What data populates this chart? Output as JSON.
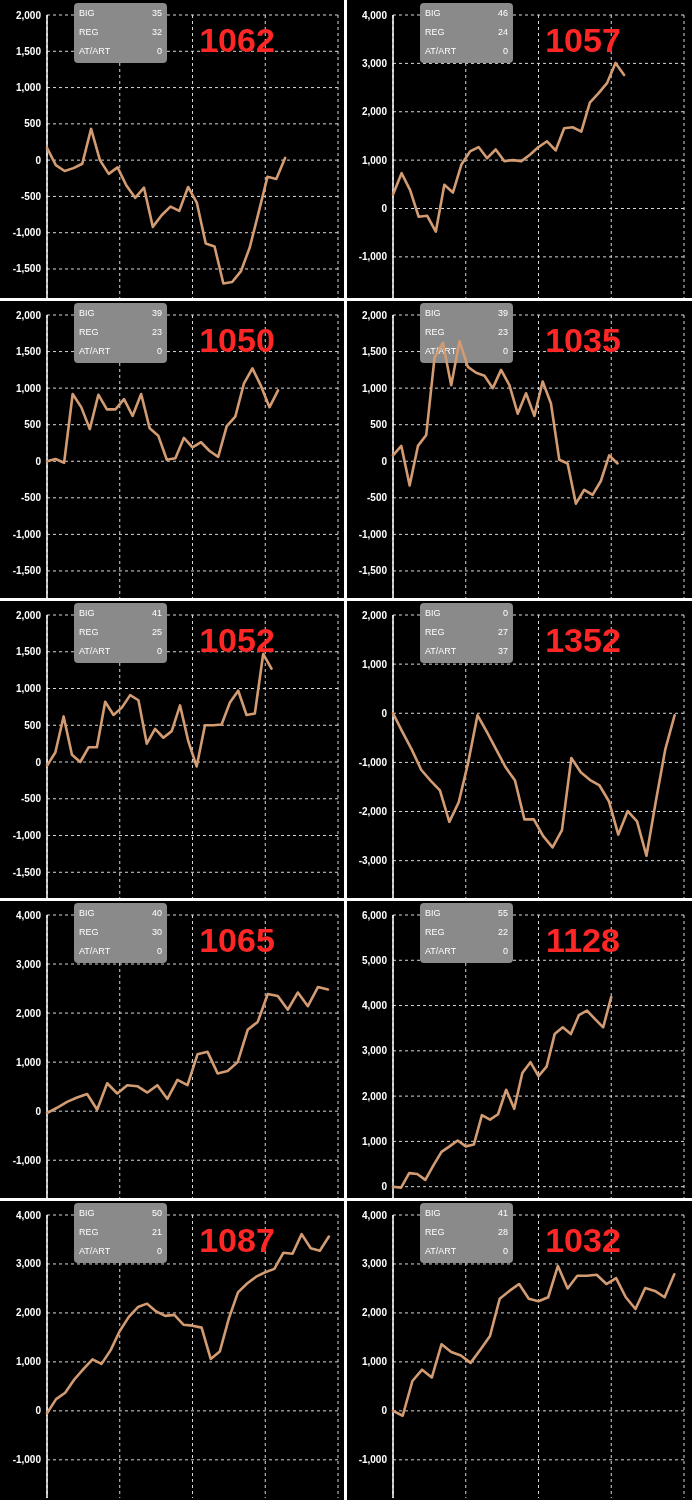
{
  "chart_data": [
    {
      "type": "line",
      "title": "1062",
      "annotations": [
        "BIG",
        "35",
        "REG",
        "32",
        "AT/ART",
        "0"
      ],
      "categories": [
        null,
        null,
        null,
        null,
        null,
        null,
        null,
        null,
        null,
        null,
        null,
        null,
        null,
        null,
        null,
        null,
        null,
        null,
        null,
        null,
        null,
        null,
        null,
        null,
        null,
        null,
        null,
        null,
        null,
        null,
        null,
        null,
        null,
        null
      ],
      "series": [
        {
          "color": "#d29b72",
          "values": [
            170,
            -70,
            -150,
            -110,
            -50,
            430,
            0,
            -190,
            -100,
            -350,
            -520,
            -380,
            -920,
            -760,
            -640,
            -700,
            -370,
            -590,
            -1150,
            -1190,
            -1700,
            -1680,
            -1530,
            -1200,
            -720,
            -230,
            -260,
            30,
            null,
            null,
            null,
            null,
            null,
            null
          ]
        }
      ],
      "ylim": [
        -1900,
        2000
      ],
      "yticks": [
        {
          "value": -1500,
          "label": "-1,500"
        },
        {
          "value": -1000,
          "label": "-1,000"
        },
        {
          "value": -500,
          "label": "-500"
        },
        {
          "value": 0,
          "label": "0"
        },
        {
          "value": 500,
          "label": "500"
        },
        {
          "value": 1000,
          "label": "1,000"
        },
        {
          "value": 1500,
          "label": "1,500"
        },
        {
          "value": 2000,
          "label": "2,000"
        }
      ],
      "grid": true,
      "tick_labels": "y"
    },
    {
      "type": "line",
      "title": "1057",
      "annotations": [
        "BIG",
        "46",
        "REG",
        "24",
        "AT/ART",
        "0"
      ],
      "categories": [
        null,
        null,
        null,
        null,
        null,
        null,
        null,
        null,
        null,
        null,
        null,
        null,
        null,
        null,
        null,
        null,
        null,
        null,
        null,
        null,
        null,
        null,
        null,
        null,
        null,
        null,
        null,
        null,
        null,
        null,
        null,
        null,
        null,
        null,
        null
      ],
      "series": [
        {
          "color": "#d29b72",
          "values": [
            290,
            730,
            380,
            -170,
            -150,
            -480,
            490,
            330,
            910,
            1180,
            1270,
            1040,
            1220,
            980,
            1000,
            980,
            1110,
            1270,
            1390,
            1200,
            1660,
            1680,
            1590,
            2190,
            2380,
            2590,
            3010,
            2760,
            null,
            null,
            null,
            null,
            null,
            null,
            null
          ]
        }
      ],
      "ylim": [
        -1850,
        4000
      ],
      "yticks": [
        {
          "value": -1000,
          "label": "-1,000"
        },
        {
          "value": 0,
          "label": "0"
        },
        {
          "value": 1000,
          "label": "1,000"
        },
        {
          "value": 2000,
          "label": "2,000"
        },
        {
          "value": 3000,
          "label": "3,000"
        },
        {
          "value": 4000,
          "label": "4,000"
        }
      ],
      "grid": true,
      "tick_labels": "y"
    },
    {
      "type": "line",
      "title": "1050",
      "annotations": [
        "BIG",
        "39",
        "REG",
        "23",
        "AT/ART",
        "0"
      ],
      "categories": [
        null,
        null,
        null,
        null,
        null,
        null,
        null,
        null,
        null,
        null,
        null,
        null,
        null,
        null,
        null,
        null,
        null,
        null,
        null,
        null,
        null,
        null,
        null,
        null,
        null,
        null,
        null,
        null,
        null,
        null,
        null,
        null,
        null,
        null,
        null
      ],
      "series": [
        {
          "color": "#d29b72",
          "values": [
            0,
            30,
            -20,
            920,
            740,
            440,
            910,
            710,
            710,
            850,
            620,
            920,
            450,
            350,
            20,
            40,
            320,
            190,
            260,
            140,
            60,
            480,
            610,
            1060,
            1270,
            1030,
            740,
            970,
            null,
            null,
            null,
            null,
            null,
            null,
            null
          ]
        }
      ],
      "ylim": [
        -1870,
        2000
      ],
      "yticks": [
        {
          "value": -1500,
          "label": "-1,500"
        },
        {
          "value": -1000,
          "label": "-1,000"
        },
        {
          "value": -500,
          "label": "-500"
        },
        {
          "value": 0,
          "label": "0"
        },
        {
          "value": 500,
          "label": "500"
        },
        {
          "value": 1000,
          "label": "1,000"
        },
        {
          "value": 1500,
          "label": "1,500"
        },
        {
          "value": 2000,
          "label": "2,000"
        }
      ],
      "grid": true,
      "tick_labels": "y"
    },
    {
      "type": "line",
      "title": "1035",
      "annotations": [
        "BIG",
        "39",
        "REG",
        "23",
        "AT/ART",
        "0"
      ],
      "categories": [
        null,
        null,
        null,
        null,
        null,
        null,
        null,
        null,
        null,
        null,
        null,
        null,
        null,
        null,
        null,
        null,
        null,
        null,
        null,
        null,
        null,
        null,
        null,
        null,
        null,
        null,
        null,
        null,
        null,
        null,
        null,
        null,
        null,
        null,
        null,
        null
      ],
      "series": [
        {
          "color": "#d29b72",
          "values": [
            80,
            210,
            -330,
            210,
            360,
            1420,
            1620,
            1040,
            1640,
            1290,
            1210,
            1170,
            1000,
            1250,
            1040,
            650,
            930,
            620,
            1090,
            790,
            20,
            -30,
            -580,
            -390,
            -460,
            -270,
            80,
            -30,
            null,
            null,
            null,
            null,
            null,
            null,
            null,
            null
          ]
        }
      ],
      "ylim": [
        -1870,
        2000
      ],
      "yticks": [
        {
          "value": -1500,
          "label": "-1,500"
        },
        {
          "value": -1000,
          "label": "-1,000"
        },
        {
          "value": -500,
          "label": "-500"
        },
        {
          "value": 0,
          "label": "0"
        },
        {
          "value": 500,
          "label": "500"
        },
        {
          "value": 1000,
          "label": "1,000"
        },
        {
          "value": 1500,
          "label": "1,500"
        },
        {
          "value": 2000,
          "label": "2,000"
        }
      ],
      "grid": true,
      "tick_labels": "y"
    },
    {
      "type": "line",
      "title": "1052",
      "annotations": [
        "BIG",
        "41",
        "REG",
        "25",
        "AT/ART",
        "0"
      ],
      "categories": [
        null,
        null,
        null,
        null,
        null,
        null,
        null,
        null,
        null,
        null,
        null,
        null,
        null,
        null,
        null,
        null,
        null,
        null,
        null,
        null,
        null,
        null,
        null,
        null,
        null,
        null,
        null,
        null,
        null,
        null,
        null,
        null,
        null,
        null,
        null,
        null
      ],
      "series": [
        {
          "color": "#d29b72",
          "values": [
            -50,
            130,
            620,
            100,
            0,
            200,
            200,
            820,
            640,
            740,
            910,
            840,
            250,
            450,
            330,
            420,
            770,
            280,
            -60,
            500,
            500,
            510,
            810,
            970,
            640,
            660,
            1470,
            1270,
            null,
            null,
            null,
            null,
            null,
            null,
            null,
            null
          ]
        }
      ],
      "ylim": [
        -1850,
        2000
      ],
      "yticks": [
        {
          "value": -1500,
          "label": "-1,500"
        },
        {
          "value": -1000,
          "label": "-1,000"
        },
        {
          "value": -500,
          "label": "-500"
        },
        {
          "value": 0,
          "label": "0"
        },
        {
          "value": 500,
          "label": "500"
        },
        {
          "value": 1000,
          "label": "1,000"
        },
        {
          "value": 1500,
          "label": "1,500"
        },
        {
          "value": 2000,
          "label": "2,000"
        }
      ],
      "grid": true,
      "tick_labels": "y"
    },
    {
      "type": "line",
      "title": "1352",
      "annotations": [
        "BIG",
        "0",
        "REG",
        "27",
        "AT/ART",
        "37"
      ],
      "categories": [
        null,
        null,
        null,
        null,
        null,
        null,
        null,
        null,
        null,
        null,
        null,
        null,
        null,
        null,
        null,
        null,
        null,
        null,
        null,
        null,
        null,
        null,
        null,
        null,
        null,
        null,
        null,
        null,
        null,
        null,
        null,
        null
      ],
      "series": [
        {
          "color": "#d29b72",
          "values": [
            0,
            -380,
            -740,
            -1150,
            -1370,
            -1570,
            -2210,
            -1810,
            -1010,
            -40,
            -380,
            -740,
            -1100,
            -1370,
            -2160,
            -2160,
            -2500,
            -2730,
            -2380,
            -910,
            -1200,
            -1360,
            -1470,
            -1790,
            -2470,
            -1990,
            -2200,
            -2900,
            -1790,
            -740,
            -40,
            null
          ]
        }
      ],
      "ylim": [
        -3760,
        2000
      ],
      "yticks": [
        {
          "value": -3000,
          "label": "-3,000"
        },
        {
          "value": -2000,
          "label": "-2,000"
        },
        {
          "value": -1000,
          "label": "-1,000"
        },
        {
          "value": 0,
          "label": "0"
        },
        {
          "value": 1000,
          "label": "1,000"
        },
        {
          "value": 2000,
          "label": "2,000"
        }
      ],
      "grid": true,
      "tick_labels": "y"
    },
    {
      "type": "line",
      "title": "1065",
      "annotations": [
        "BIG",
        "40",
        "REG",
        "30",
        "AT/ART",
        "0"
      ],
      "categories": [
        null,
        null,
        null,
        null,
        null,
        null,
        null,
        null,
        null,
        null,
        null,
        null,
        null,
        null,
        null,
        null,
        null,
        null,
        null,
        null,
        null,
        null,
        null,
        null,
        null,
        null,
        null,
        null,
        null,
        null
      ],
      "series": [
        {
          "color": "#d29b72",
          "values": [
            -40,
            70,
            190,
            280,
            350,
            30,
            570,
            360,
            530,
            510,
            380,
            530,
            250,
            640,
            530,
            1160,
            1210,
            770,
            820,
            1000,
            1660,
            1820,
            2390,
            2350,
            2070,
            2420,
            2140,
            2530,
            2480,
            null
          ]
        }
      ],
      "ylim": [
        -1770,
        4000
      ],
      "yticks": [
        {
          "value": -1000,
          "label": "-1,000"
        },
        {
          "value": 0,
          "label": "0"
        },
        {
          "value": 1000,
          "label": "1,000"
        },
        {
          "value": 2000,
          "label": "2,000"
        },
        {
          "value": 3000,
          "label": "3,000"
        },
        {
          "value": 4000,
          "label": "4,000"
        }
      ],
      "grid": true,
      "tick_labels": "y"
    },
    {
      "type": "line",
      "title": "1128",
      "annotations": [
        "BIG",
        "55",
        "REG",
        "22",
        "AT/ART",
        "0"
      ],
      "categories": [
        null,
        null,
        null,
        null,
        null,
        null,
        null,
        null,
        null,
        null,
        null,
        null,
        null,
        null,
        null,
        null,
        null,
        null,
        null,
        null,
        null,
        null,
        null,
        null,
        null,
        null,
        null,
        null,
        null,
        null,
        null,
        null,
        null,
        null,
        null,
        null,
        null
      ],
      "series": [
        {
          "color": "#d29b72",
          "values": [
            0,
            -20,
            300,
            280,
            150,
            470,
            770,
            890,
            1020,
            890,
            930,
            1580,
            1480,
            1600,
            2140,
            1720,
            2510,
            2750,
            2440,
            2650,
            3370,
            3520,
            3370,
            3790,
            3890,
            3700,
            3520,
            4190,
            null,
            null,
            null,
            null,
            null,
            null,
            null,
            null,
            null
          ]
        }
      ],
      "ylim": [
        -250,
        6000
      ],
      "yticks": [
        {
          "value": 0,
          "label": "0"
        },
        {
          "value": 1000,
          "label": "1,000"
        },
        {
          "value": 2000,
          "label": "2,000"
        },
        {
          "value": 3000,
          "label": "3,000"
        },
        {
          "value": 4000,
          "label": "4,000"
        },
        {
          "value": 5000,
          "label": "5,000"
        },
        {
          "value": 6000,
          "label": "6,000"
        }
      ],
      "grid": true,
      "tick_labels": "y"
    },
    {
      "type": "line",
      "title": "1087",
      "annotations": [
        "BIG",
        "50",
        "REG",
        "21",
        "AT/ART",
        "0"
      ],
      "categories": [
        null,
        null,
        null,
        null,
        null,
        null,
        null,
        null,
        null,
        null,
        null,
        null,
        null,
        null,
        null,
        null,
        null,
        null,
        null,
        null,
        null,
        null,
        null,
        null,
        null,
        null,
        null,
        null,
        null,
        null,
        null,
        null,
        null
      ],
      "series": [
        {
          "color": "#d29b72",
          "values": [
            -50,
            240,
            370,
            640,
            850,
            1050,
            960,
            1240,
            1630,
            1920,
            2120,
            2190,
            2030,
            1940,
            1960,
            1760,
            1740,
            1700,
            1060,
            1210,
            1890,
            2420,
            2600,
            2740,
            2830,
            2900,
            3230,
            3210,
            3610,
            3320,
            3270,
            3560,
            null
          ]
        }
      ],
      "ylim": [
        -1780,
        4000
      ],
      "yticks": [
        {
          "value": -1000,
          "label": "-1,000"
        },
        {
          "value": 0,
          "label": "0"
        },
        {
          "value": 1000,
          "label": "1,000"
        },
        {
          "value": 2000,
          "label": "2,000"
        },
        {
          "value": 3000,
          "label": "3,000"
        },
        {
          "value": 4000,
          "label": "4,000"
        }
      ],
      "grid": true,
      "tick_labels": "y"
    },
    {
      "type": "line",
      "title": "1032",
      "annotations": [
        "BIG",
        "41",
        "REG",
        "28",
        "AT/ART",
        "0"
      ],
      "categories": [
        null,
        null,
        null,
        null,
        null,
        null,
        null,
        null,
        null,
        null,
        null,
        null,
        null,
        null,
        null,
        null,
        null,
        null,
        null,
        null,
        null,
        null,
        null,
        null,
        null,
        null,
        null,
        null,
        null,
        null,
        null
      ],
      "series": [
        {
          "color": "#d29b72",
          "values": [
            0,
            -100,
            610,
            840,
            680,
            1360,
            1200,
            1130,
            980,
            1250,
            1530,
            2290,
            2450,
            2590,
            2290,
            2240,
            2320,
            2960,
            2500,
            2760,
            2760,
            2780,
            2590,
            2710,
            2320,
            2080,
            2510,
            2450,
            2320,
            2790,
            null
          ]
        }
      ],
      "ylim": [
        -1780,
        4000
      ],
      "yticks": [
        {
          "value": -1000,
          "label": "-1,000"
        },
        {
          "value": 0,
          "label": "0"
        },
        {
          "value": 1000,
          "label": "1,000"
        },
        {
          "value": 2000,
          "label": "2,000"
        },
        {
          "value": 3000,
          "label": "3,000"
        },
        {
          "value": 4000,
          "label": "4,000"
        }
      ],
      "grid": true,
      "tick_labels": "y"
    }
  ]
}
